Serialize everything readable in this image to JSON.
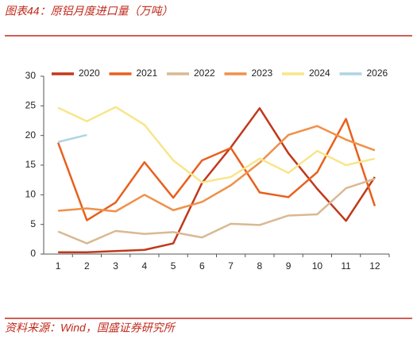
{
  "title": "图表44：原铝月度进口量（万吨）",
  "source": "资料来源：Wind，国盛证券研究所",
  "chart_data": {
    "type": "line",
    "categories": [
      "1",
      "2",
      "3",
      "4",
      "5",
      "6",
      "7",
      "8",
      "9",
      "10",
      "11",
      "12"
    ],
    "series": [
      {
        "name": "2020",
        "color": "#c0391b",
        "values": [
          0.3,
          0.3,
          0.5,
          0.7,
          1.8,
          12,
          18,
          24.6,
          17,
          11,
          5.6,
          13
        ]
      },
      {
        "name": "2021",
        "color": "#e8601c",
        "values": [
          18.8,
          5.7,
          8.7,
          15.5,
          9.5,
          15.8,
          17.9,
          10.4,
          9.6,
          13.8,
          22.8,
          8.1
        ]
      },
      {
        "name": "2022",
        "color": "#d9b993",
        "values": [
          3.8,
          1.8,
          3.9,
          3.4,
          3.7,
          2.8,
          5.1,
          4.9,
          6.5,
          6.7,
          11.1,
          12.7
        ]
      },
      {
        "name": "2023",
        "color": "#f0904a",
        "values": [
          7.3,
          7.7,
          7.2,
          10,
          7.4,
          8.8,
          11.6,
          15.4,
          20.1,
          21.6,
          19.3,
          17.5
        ]
      },
      {
        "name": "2024",
        "color": "#f7e68a",
        "values": [
          24.7,
          22.4,
          24.8,
          21.8,
          15.8,
          12.1,
          13,
          16.1,
          13.7,
          17.4,
          15,
          16.1
        ]
      },
      {
        "name": "2026",
        "color": "#aed4e6",
        "values": [
          18.9,
          20.1,
          null,
          null,
          null,
          null,
          null,
          null,
          null,
          null,
          null,
          null
        ]
      }
    ],
    "ylim": [
      0,
      30
    ],
    "yticks": [
      0,
      5,
      10,
      15,
      20,
      25,
      30
    ],
    "grid": false,
    "legend": "top"
  }
}
